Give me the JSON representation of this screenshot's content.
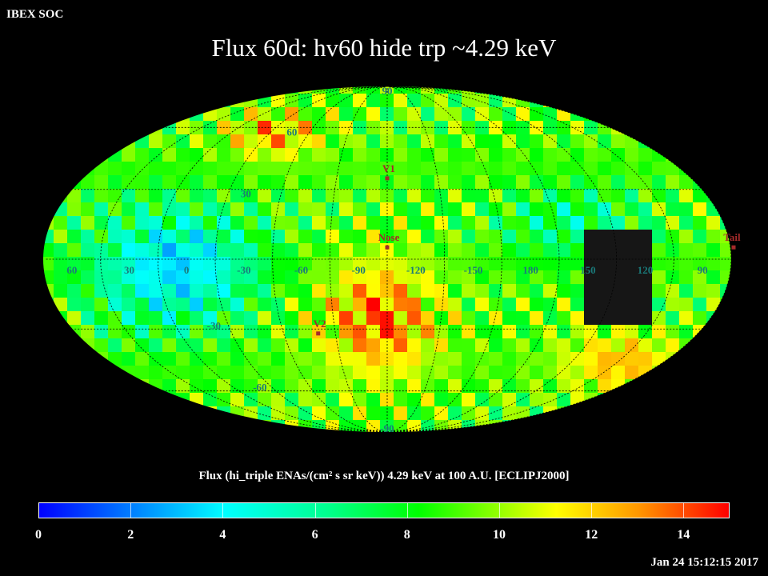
{
  "header": {
    "org": "IBEX SOC",
    "title": "Flux   60d: hv60 hide trp ~4.29 keV"
  },
  "map": {
    "lon_labels": [
      {
        "text": "60",
        "lon": 60
      },
      {
        "text": "30",
        "lon": 30
      },
      {
        "text": "0",
        "lon": 0
      },
      {
        "text": "-30",
        "lon": -30
      },
      {
        "text": "-60",
        "lon": -60
      },
      {
        "text": "-90",
        "lon": -90
      },
      {
        "text": "-120",
        "lon": -120
      },
      {
        "text": "-150",
        "lon": -150
      },
      {
        "text": "180",
        "lon": 180
      },
      {
        "text": "150",
        "lon": 150
      },
      {
        "text": "120",
        "lon": 120
      },
      {
        "text": "90",
        "lon": 90
      }
    ],
    "lat_labels": [
      {
        "text": "90",
        "lat": 90
      },
      {
        "text": "60",
        "lat": 60
      },
      {
        "text": "30",
        "lat": 30
      },
      {
        "text": "-30",
        "lat": -30
      },
      {
        "text": "-60",
        "lat": -60
      },
      {
        "text": "-90",
        "lat": -90
      }
    ],
    "markers": [
      {
        "name": "V1",
        "lon": -105,
        "lat": 35
      },
      {
        "name": "Nose",
        "lon": -105,
        "lat": 5
      },
      {
        "name": "V2",
        "lon": -65,
        "lat": -32
      },
      {
        "name": "Tail",
        "lon": 75,
        "lat": 5
      }
    ]
  },
  "colorbar": {
    "title": "Flux (hi_triple ENAs/(cm² s sr keV))  4.29 keV at 100 A.U. [ECLIPJ2000]",
    "min": 0,
    "max": 15,
    "ticks": [
      "0",
      "2",
      "4",
      "6",
      "8",
      "10",
      "12",
      "14"
    ]
  },
  "timestamp": "Jan 24 15:12:15 2017"
}
